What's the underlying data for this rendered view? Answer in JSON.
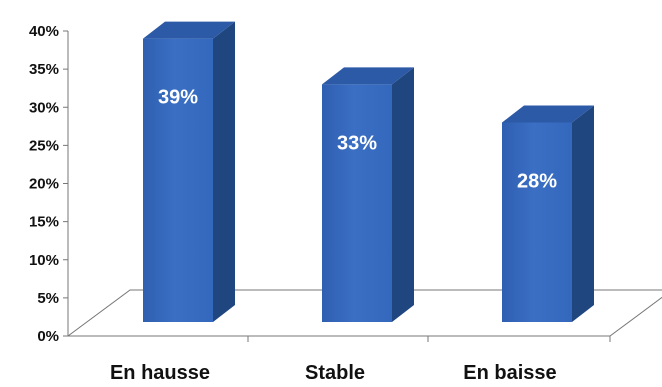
{
  "chart_data": {
    "type": "bar",
    "title": "",
    "xlabel": "",
    "ylabel": "",
    "categories": [
      "En hausse",
      "Stable",
      "En baisse"
    ],
    "values": [
      39,
      33,
      28
    ],
    "data_labels": [
      "39%",
      "33%",
      "28%"
    ],
    "ylim": [
      0,
      40
    ],
    "y_ticks": [
      0,
      5,
      10,
      15,
      20,
      25,
      30,
      35,
      40
    ],
    "y_tick_labels": [
      "0%",
      "5%",
      "10%",
      "15%",
      "20%",
      "25%",
      "30%",
      "35%",
      "40%"
    ],
    "grid": false,
    "legend": "none",
    "style": "3d-column",
    "colors": {
      "bar_front": "#3a6fc4",
      "bar_side": "#1f467f",
      "bar_top": "#2c5aa6",
      "floor": "#ffffff",
      "axis": "#777777"
    }
  }
}
